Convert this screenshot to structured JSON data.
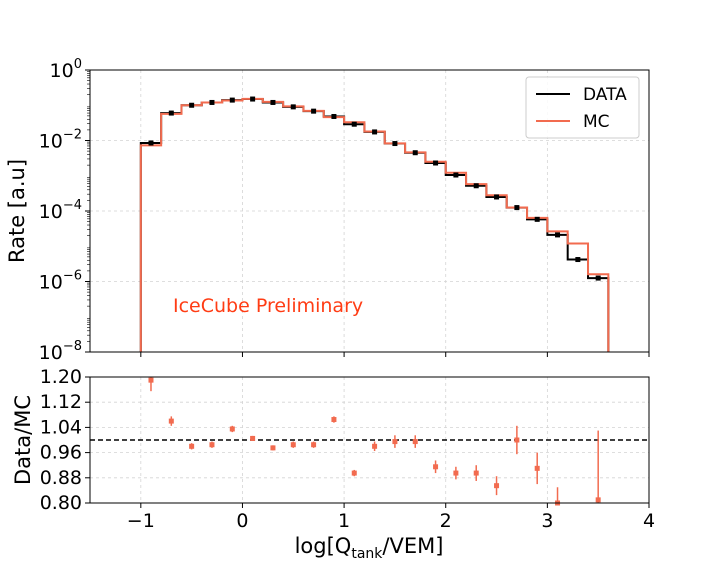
{
  "colors": {
    "data": "#000000",
    "mc": "#f26b4f",
    "preliminary": "#ff3c14",
    "grid": "#d3d3d3",
    "reference_line": "#000000"
  },
  "chart_data": [
    {
      "type": "line",
      "panel": "top",
      "title": "",
      "ylabel": "Rate [a.u]",
      "yscale": "log",
      "ylim_exponents": [
        -8,
        0
      ],
      "yticks": [
        {
          "base": "10",
          "exp": "0",
          "exp_num": 0
        },
        {
          "base": "10",
          "exp": "−2",
          "exp_num": -2
        },
        {
          "base": "10",
          "exp": "−4",
          "exp_num": -4
        },
        {
          "base": "10",
          "exp": "−6",
          "exp_num": -6
        },
        {
          "base": "10",
          "exp": "−8",
          "exp_num": -8
        }
      ],
      "xlim": [
        -1.5,
        4.0
      ],
      "grid": true,
      "legend": {
        "placement": "top-right",
        "entries": [
          {
            "label": "DATA",
            "series": "data"
          },
          {
            "label": "MC",
            "series": "mc"
          }
        ]
      },
      "annotation": "IceCube Preliminary",
      "bin_edges": [
        -1.0,
        -0.8,
        -0.6,
        -0.4,
        -0.2,
        0.0,
        0.2,
        0.4,
        0.6,
        0.8,
        1.0,
        1.2,
        1.4,
        1.6,
        1.8,
        2.0,
        2.2,
        2.4,
        2.6,
        2.8,
        3.0,
        3.2,
        3.4,
        3.6
      ],
      "bin_centers": [
        -0.9,
        -0.7,
        -0.5,
        -0.3,
        -0.1,
        0.1,
        0.3,
        0.5,
        0.7,
        0.9,
        1.1,
        1.3,
        1.5,
        1.7,
        1.9,
        2.1,
        2.3,
        2.5,
        2.7,
        2.9,
        3.1,
        3.3,
        3.5
      ],
      "series": [
        {
          "name": "DATA",
          "key": "data",
          "values": [
            0.0085,
            0.06,
            0.1,
            0.12,
            0.14,
            0.15,
            0.12,
            0.09,
            0.068,
            0.048,
            0.029,
            0.0175,
            0.0082,
            0.0045,
            0.0023,
            0.00105,
            0.00052,
            0.00025,
            0.000125,
            5.8e-05,
            2.1e-05,
            4.2e-06,
            1.25e-06
          ]
        },
        {
          "name": "MC",
          "key": "mc",
          "values": [
            0.0073,
            0.057,
            0.1,
            0.12,
            0.136,
            0.152,
            0.125,
            0.093,
            0.069,
            0.046,
            0.033,
            0.018,
            0.0083,
            0.0046,
            0.0025,
            0.00122,
            0.00058,
            0.00028,
            0.000126,
            6.4e-05,
            2.65e-05,
            1.2e-05,
            1.6e-06
          ]
        }
      ]
    },
    {
      "type": "scatter",
      "panel": "bottom",
      "title": "",
      "xlabel": {
        "prefix": "log[Q",
        "subscript": "tank",
        "suffix": "/VEM]"
      },
      "ylabel": "Data/MC",
      "ylim": [
        0.8,
        1.2
      ],
      "yticks": [
        "0.80",
        "0.88",
        "0.96",
        "1.04",
        "1.12",
        "1.20"
      ],
      "xlim": [
        -1.5,
        4.0
      ],
      "xticks": [
        "−1",
        "0",
        "1",
        "2",
        "3",
        "4"
      ],
      "xtick_values": [
        -1,
        0,
        1,
        2,
        3,
        4
      ],
      "grid": true,
      "reference_line": 1.0,
      "x": [
        -0.9,
        -0.7,
        -0.5,
        -0.3,
        -0.1,
        0.1,
        0.3,
        0.5,
        0.7,
        0.9,
        1.1,
        1.3,
        1.5,
        1.7,
        1.9,
        2.1,
        2.3,
        2.5,
        2.7,
        2.9,
        3.1,
        3.5
      ],
      "ratio": [
        1.19,
        1.06,
        0.98,
        0.985,
        1.035,
        1.005,
        0.975,
        0.985,
        0.985,
        1.065,
        0.895,
        0.98,
        0.995,
        0.995,
        0.915,
        0.895,
        0.895,
        0.855,
        1.0,
        0.91,
        0.8,
        0.81
      ],
      "err_low": [
        0.035,
        0.015,
        0.01,
        0.01,
        0.01,
        0.008,
        0.008,
        0.01,
        0.01,
        0.01,
        0.01,
        0.015,
        0.02,
        0.02,
        0.02,
        0.02,
        0.025,
        0.03,
        0.045,
        0.05,
        0.05,
        0.2
      ],
      "err_high": [
        0.015,
        0.015,
        0.01,
        0.01,
        0.01,
        0.008,
        0.008,
        0.01,
        0.01,
        0.01,
        0.01,
        0.015,
        0.02,
        0.02,
        0.02,
        0.02,
        0.025,
        0.03,
        0.045,
        0.05,
        0.05,
        0.22
      ]
    }
  ]
}
